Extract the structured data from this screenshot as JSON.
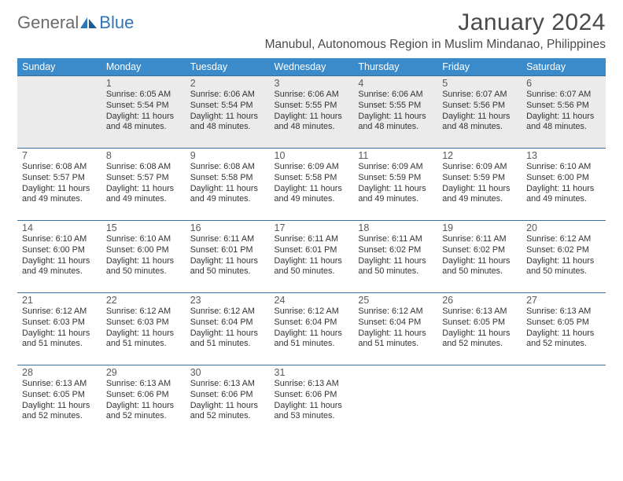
{
  "brand": {
    "part1": "General",
    "part2": "Blue"
  },
  "title": "January 2024",
  "location": "Manubul, Autonomous Region in Muslim Mindanao, Philippines",
  "colors": {
    "header_bg": "#3b8bca",
    "header_text": "#ffffff",
    "row_border": "#3b6fa0",
    "first_week_bg": "#ebebeb",
    "text": "#333333",
    "logo_gray": "#6b6b6b",
    "logo_blue": "#2f76b8"
  },
  "days_of_week": [
    "Sunday",
    "Monday",
    "Tuesday",
    "Wednesday",
    "Thursday",
    "Friday",
    "Saturday"
  ],
  "weeks": [
    [
      null,
      {
        "n": "1",
        "sunrise": "6:05 AM",
        "sunset": "5:54 PM",
        "daylight": "11 hours and 48 minutes."
      },
      {
        "n": "2",
        "sunrise": "6:06 AM",
        "sunset": "5:54 PM",
        "daylight": "11 hours and 48 minutes."
      },
      {
        "n": "3",
        "sunrise": "6:06 AM",
        "sunset": "5:55 PM",
        "daylight": "11 hours and 48 minutes."
      },
      {
        "n": "4",
        "sunrise": "6:06 AM",
        "sunset": "5:55 PM",
        "daylight": "11 hours and 48 minutes."
      },
      {
        "n": "5",
        "sunrise": "6:07 AM",
        "sunset": "5:56 PM",
        "daylight": "11 hours and 48 minutes."
      },
      {
        "n": "6",
        "sunrise": "6:07 AM",
        "sunset": "5:56 PM",
        "daylight": "11 hours and 48 minutes."
      }
    ],
    [
      {
        "n": "7",
        "sunrise": "6:08 AM",
        "sunset": "5:57 PM",
        "daylight": "11 hours and 49 minutes."
      },
      {
        "n": "8",
        "sunrise": "6:08 AM",
        "sunset": "5:57 PM",
        "daylight": "11 hours and 49 minutes."
      },
      {
        "n": "9",
        "sunrise": "6:08 AM",
        "sunset": "5:58 PM",
        "daylight": "11 hours and 49 minutes."
      },
      {
        "n": "10",
        "sunrise": "6:09 AM",
        "sunset": "5:58 PM",
        "daylight": "11 hours and 49 minutes."
      },
      {
        "n": "11",
        "sunrise": "6:09 AM",
        "sunset": "5:59 PM",
        "daylight": "11 hours and 49 minutes."
      },
      {
        "n": "12",
        "sunrise": "6:09 AM",
        "sunset": "5:59 PM",
        "daylight": "11 hours and 49 minutes."
      },
      {
        "n": "13",
        "sunrise": "6:10 AM",
        "sunset": "6:00 PM",
        "daylight": "11 hours and 49 minutes."
      }
    ],
    [
      {
        "n": "14",
        "sunrise": "6:10 AM",
        "sunset": "6:00 PM",
        "daylight": "11 hours and 49 minutes."
      },
      {
        "n": "15",
        "sunrise": "6:10 AM",
        "sunset": "6:00 PM",
        "daylight": "11 hours and 50 minutes."
      },
      {
        "n": "16",
        "sunrise": "6:11 AM",
        "sunset": "6:01 PM",
        "daylight": "11 hours and 50 minutes."
      },
      {
        "n": "17",
        "sunrise": "6:11 AM",
        "sunset": "6:01 PM",
        "daylight": "11 hours and 50 minutes."
      },
      {
        "n": "18",
        "sunrise": "6:11 AM",
        "sunset": "6:02 PM",
        "daylight": "11 hours and 50 minutes."
      },
      {
        "n": "19",
        "sunrise": "6:11 AM",
        "sunset": "6:02 PM",
        "daylight": "11 hours and 50 minutes."
      },
      {
        "n": "20",
        "sunrise": "6:12 AM",
        "sunset": "6:02 PM",
        "daylight": "11 hours and 50 minutes."
      }
    ],
    [
      {
        "n": "21",
        "sunrise": "6:12 AM",
        "sunset": "6:03 PM",
        "daylight": "11 hours and 51 minutes."
      },
      {
        "n": "22",
        "sunrise": "6:12 AM",
        "sunset": "6:03 PM",
        "daylight": "11 hours and 51 minutes."
      },
      {
        "n": "23",
        "sunrise": "6:12 AM",
        "sunset": "6:04 PM",
        "daylight": "11 hours and 51 minutes."
      },
      {
        "n": "24",
        "sunrise": "6:12 AM",
        "sunset": "6:04 PM",
        "daylight": "11 hours and 51 minutes."
      },
      {
        "n": "25",
        "sunrise": "6:12 AM",
        "sunset": "6:04 PM",
        "daylight": "11 hours and 51 minutes."
      },
      {
        "n": "26",
        "sunrise": "6:13 AM",
        "sunset": "6:05 PM",
        "daylight": "11 hours and 52 minutes."
      },
      {
        "n": "27",
        "sunrise": "6:13 AM",
        "sunset": "6:05 PM",
        "daylight": "11 hours and 52 minutes."
      }
    ],
    [
      {
        "n": "28",
        "sunrise": "6:13 AM",
        "sunset": "6:05 PM",
        "daylight": "11 hours and 52 minutes."
      },
      {
        "n": "29",
        "sunrise": "6:13 AM",
        "sunset": "6:06 PM",
        "daylight": "11 hours and 52 minutes."
      },
      {
        "n": "30",
        "sunrise": "6:13 AM",
        "sunset": "6:06 PM",
        "daylight": "11 hours and 52 minutes."
      },
      {
        "n": "31",
        "sunrise": "6:13 AM",
        "sunset": "6:06 PM",
        "daylight": "11 hours and 53 minutes."
      },
      null,
      null,
      null
    ]
  ],
  "labels": {
    "sunrise": "Sunrise:",
    "sunset": "Sunset:",
    "daylight": "Daylight:"
  }
}
